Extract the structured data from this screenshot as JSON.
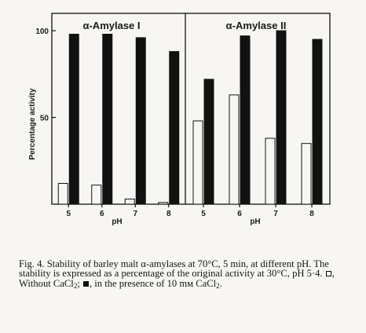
{
  "chart_data": [
    {
      "type": "bar",
      "title": "α-Amylase I",
      "ylabel": "Percentage activity",
      "xlabel": "pH",
      "ylim": [
        0,
        110
      ],
      "yticks": [
        50,
        100
      ],
      "categories": [
        "5",
        "6",
        "7",
        "8"
      ],
      "series": [
        {
          "name": "Without CaCl₂",
          "style": "open",
          "values": [
            12,
            11,
            3,
            1
          ]
        },
        {
          "name": "10 mM CaCl₂",
          "style": "filled",
          "values": [
            98,
            98,
            96,
            88
          ]
        }
      ]
    },
    {
      "type": "bar",
      "title": "α-Amylase II",
      "xlabel": "pH",
      "ylim": [
        0,
        110
      ],
      "categories": [
        "5",
        "6",
        "7",
        "8"
      ],
      "series": [
        {
          "name": "Without CaCl₂",
          "style": "open",
          "values": [
            48,
            63,
            38,
            35
          ]
        },
        {
          "name": "10 mM CaCl₂",
          "style": "filled",
          "values": [
            72,
            97,
            100,
            95
          ]
        }
      ]
    }
  ],
  "caption": {
    "lead": "Fig. 4. Stability of barley malt α-amylases at 70°C, 5 min, at different pH. The stability is expressed as a percentage of the original activity at 30°C, pH 5·4.",
    "open_text": ", Without CaCl",
    "open_sub": "2",
    "sep": ";",
    "filled_text": ", in the presence of 10 mм CaCl",
    "filled_sub": "2",
    "end": "."
  },
  "colors": {
    "ink": "#111111",
    "paper": "#f7f6f2"
  }
}
